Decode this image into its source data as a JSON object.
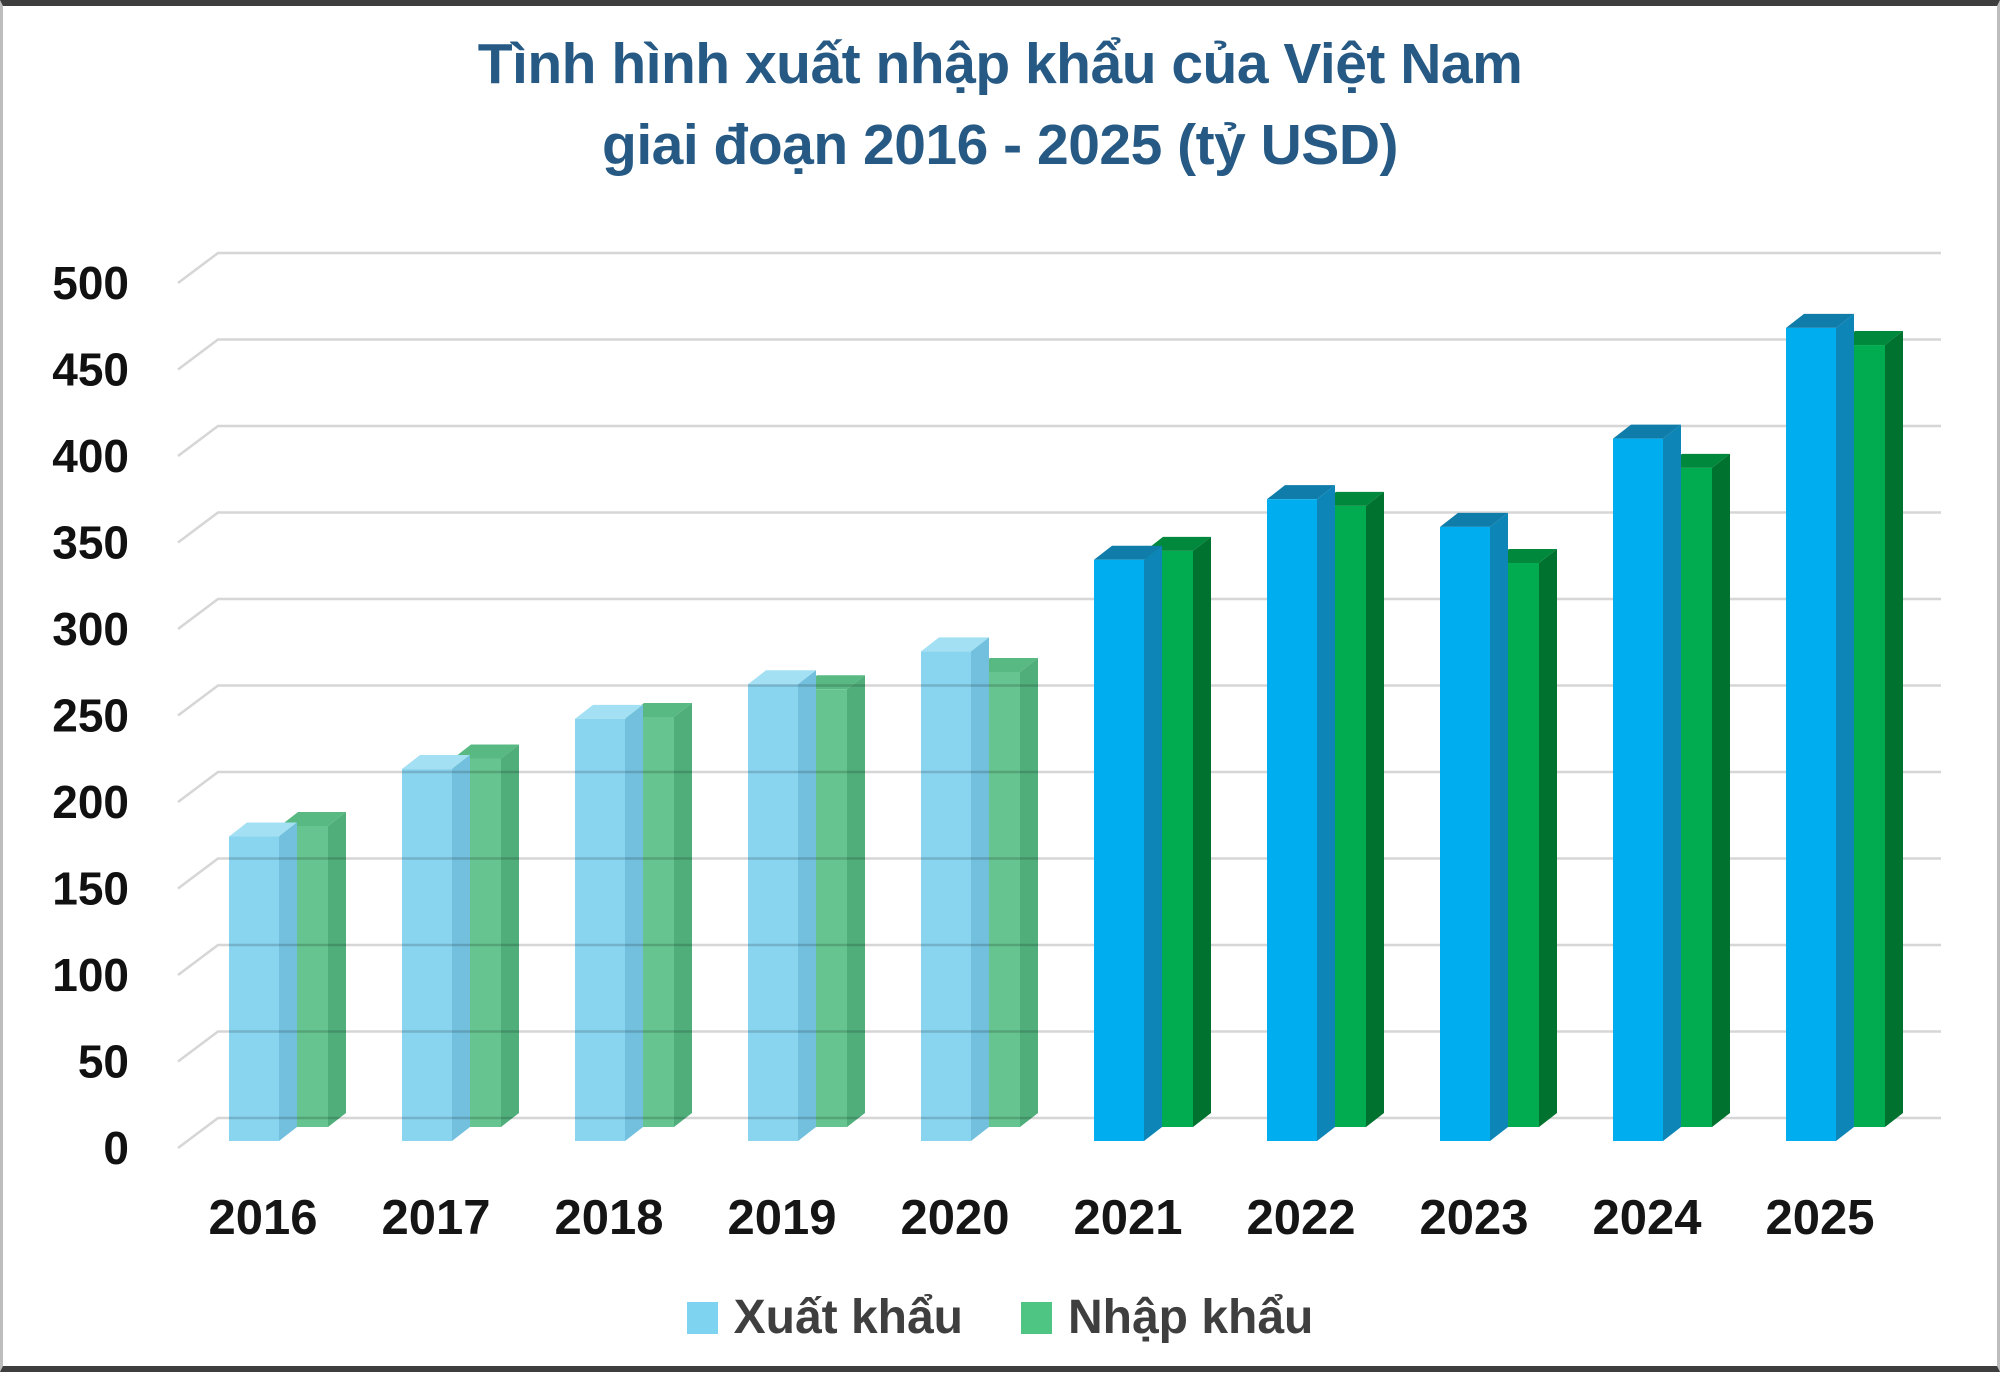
{
  "title": {
    "line1": "Tình hình xuất nhập khẩu của Việt Nam",
    "line2": "giai đoạn 2016 - 2025 (tỷ USD)",
    "color": "#265a84"
  },
  "legend": {
    "items": [
      {
        "label": "Xuất khẩu",
        "swatch_color": "#7ed3f0"
      },
      {
        "label": "Nhập khẩu",
        "swatch_color": "#4fc584"
      }
    ]
  },
  "chart_data": {
    "type": "bar",
    "style": "3d-column",
    "title": "Tình hình xuất nhập khẩu của Việt Nam giai đoạn 2016 - 2025 (tỷ USD)",
    "categories": [
      "2016",
      "2017",
      "2018",
      "2019",
      "2020",
      "2021",
      "2022",
      "2023",
      "2024",
      "2025"
    ],
    "series": [
      {
        "name": "Xuất khẩu",
        "values": [
          176,
          215,
          244,
          264,
          283,
          336,
          371,
          355,
          406,
          470
        ]
      },
      {
        "name": "Nhập khẩu",
        "values": [
          174,
          213,
          237,
          253,
          263,
          333,
          359,
          326,
          381,
          452
        ]
      }
    ],
    "xlabel": "",
    "ylabel": "",
    "unit": "tỷ USD",
    "ylim": [
      0,
      500
    ],
    "ytick_step": 50,
    "yticks": [
      0,
      50,
      100,
      150,
      200,
      250,
      300,
      350,
      400,
      450,
      500
    ],
    "grid": true,
    "legend_position": "bottom",
    "highlight_from_category": "2021",
    "colors": {
      "muted_export": {
        "front": "#89d4ef",
        "top": "#a4e0f4",
        "side": "#72c0dd"
      },
      "muted_import": {
        "front": "#65c48f",
        "top": "#59b983",
        "side": "#50ae7b"
      },
      "solid_export": {
        "front": "#00aeef",
        "top": "#0f7ca9",
        "side": "#0d85b6"
      },
      "solid_import": {
        "front": "#00ac4f",
        "top": "#00893c",
        "side": "#00722f"
      },
      "gridline": "#d6d6d6",
      "axis_tick_text": "#111111",
      "category_text": "#151515"
    }
  }
}
